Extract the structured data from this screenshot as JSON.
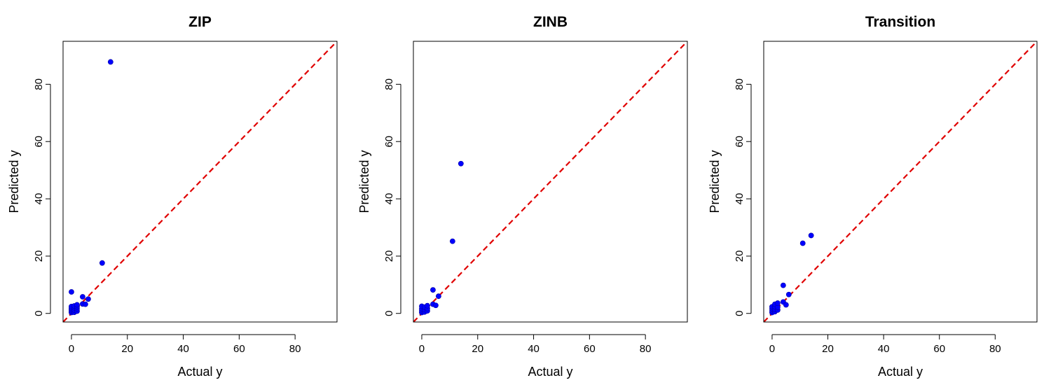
{
  "chart_data": [
    {
      "type": "scatter",
      "title": "ZIP",
      "xlabel": "Actual y",
      "ylabel": "Predicted y",
      "xlim": [
        -3,
        95
      ],
      "ylim": [
        -3,
        95
      ],
      "xticks": [
        0,
        20,
        40,
        60,
        80
      ],
      "yticks": [
        0,
        20,
        40,
        60,
        80
      ],
      "reference_line": {
        "slope": 1,
        "intercept": 0,
        "color": "#e00000",
        "style": "dashed"
      },
      "point_color": "#0000ff",
      "points": [
        [
          0,
          0.3
        ],
        [
          0,
          0.8
        ],
        [
          0,
          1.3
        ],
        [
          0,
          1.8
        ],
        [
          0,
          2.4
        ],
        [
          0,
          7.5
        ],
        [
          1,
          0.4
        ],
        [
          1,
          1.2
        ],
        [
          1,
          2.0
        ],
        [
          1,
          2.6
        ],
        [
          2,
          0.8
        ],
        [
          2,
          1.6
        ],
        [
          2,
          2.3
        ],
        [
          2,
          3.0
        ],
        [
          4,
          3.3
        ],
        [
          4,
          5.8
        ],
        [
          5,
          3.2
        ],
        [
          6,
          5.0
        ],
        [
          11,
          17.6
        ],
        [
          14,
          87.8
        ]
      ]
    },
    {
      "type": "scatter",
      "title": "ZINB",
      "xlabel": "Actual y",
      "ylabel": "Predicted y",
      "xlim": [
        -3,
        95
      ],
      "ylim": [
        -3,
        95
      ],
      "xticks": [
        0,
        20,
        40,
        60,
        80
      ],
      "yticks": [
        0,
        20,
        40,
        60,
        80
      ],
      "reference_line": {
        "slope": 1,
        "intercept": 0,
        "color": "#e00000",
        "style": "dashed"
      },
      "point_color": "#0000ff",
      "points": [
        [
          0,
          0.3
        ],
        [
          0,
          0.9
        ],
        [
          0,
          1.6
        ],
        [
          0,
          2.5
        ],
        [
          1,
          0.5
        ],
        [
          1,
          1.3
        ],
        [
          1,
          2.2
        ],
        [
          2,
          0.9
        ],
        [
          2,
          1.7
        ],
        [
          2,
          2.7
        ],
        [
          4,
          3.2
        ],
        [
          4,
          8.2
        ],
        [
          5,
          2.8
        ],
        [
          6,
          6.0
        ],
        [
          11,
          25.2
        ],
        [
          14,
          52.3
        ]
      ]
    },
    {
      "type": "scatter",
      "title": "Transition",
      "xlabel": "Actual y",
      "ylabel": "Predicted y",
      "xlim": [
        -3,
        95
      ],
      "ylim": [
        -3,
        95
      ],
      "xticks": [
        0,
        20,
        40,
        60,
        80
      ],
      "yticks": [
        0,
        20,
        40,
        60,
        80
      ],
      "reference_line": {
        "slope": 1,
        "intercept": 0,
        "color": "#e00000",
        "style": "dashed"
      },
      "point_color": "#0000ff",
      "points": [
        [
          0,
          0.3
        ],
        [
          0,
          0.9
        ],
        [
          0,
          1.6
        ],
        [
          0,
          2.3
        ],
        [
          1,
          0.6
        ],
        [
          1,
          1.4
        ],
        [
          1,
          2.3
        ],
        [
          1,
          3.2
        ],
        [
          2,
          1.2
        ],
        [
          2,
          2.2
        ],
        [
          2,
          3.6
        ],
        [
          4,
          4.0
        ],
        [
          4,
          9.8
        ],
        [
          5,
          3.0
        ],
        [
          6,
          6.6
        ],
        [
          11,
          24.5
        ],
        [
          14,
          27.2
        ]
      ]
    }
  ]
}
